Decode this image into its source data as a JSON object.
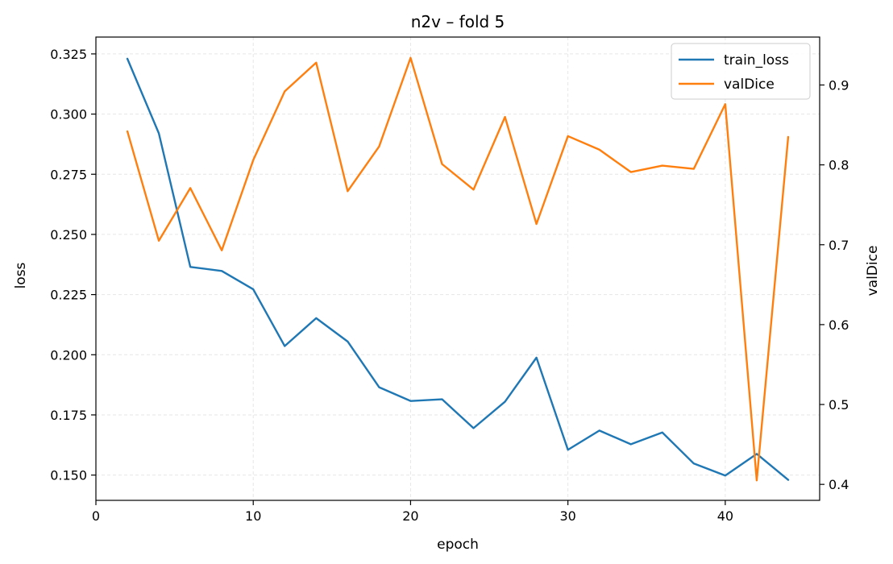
{
  "chart_data": {
    "type": "line",
    "title": "n2v – fold 5",
    "xlabel": "epoch",
    "ylabel": "loss",
    "y2label": "valDice",
    "xlim": [
      0,
      46
    ],
    "ylim": [
      0.1395,
      0.332
    ],
    "y2lim": [
      0.38,
      0.96
    ],
    "x_ticks": [
      0,
      10,
      20,
      30,
      40
    ],
    "y_ticks": [
      0.15,
      0.175,
      0.2,
      0.225,
      0.25,
      0.275,
      0.3,
      0.325
    ],
    "y2_ticks": [
      0.4,
      0.5,
      0.6,
      0.7,
      0.8,
      0.9
    ],
    "grid": true,
    "legend_position": "top-right",
    "x": [
      2,
      4,
      6,
      8,
      10,
      12,
      14,
      16,
      18,
      20,
      22,
      24,
      26,
      28,
      30,
      32,
      34,
      36,
      38,
      40,
      42,
      44
    ],
    "series": [
      {
        "name": "train_loss",
        "axis": "left",
        "color": "#1f77b4",
        "values": [
          0.323,
          0.292,
          0.2365,
          0.2348,
          0.2272,
          0.2036,
          0.2152,
          0.2055,
          0.1865,
          0.1808,
          0.1815,
          0.1695,
          0.1805,
          0.1988,
          0.1605,
          0.1685,
          0.1628,
          0.1677,
          0.1548,
          0.1498,
          0.1588,
          0.148
        ]
      },
      {
        "name": "valDice",
        "axis": "right",
        "color": "#ff7f0e",
        "values": [
          0.842,
          0.705,
          0.771,
          0.693,
          0.806,
          0.892,
          0.928,
          0.767,
          0.823,
          0.934,
          0.801,
          0.769,
          0.86,
          0.726,
          0.836,
          0.819,
          0.791,
          0.799,
          0.795,
          0.876,
          0.405,
          0.835
        ]
      }
    ]
  }
}
